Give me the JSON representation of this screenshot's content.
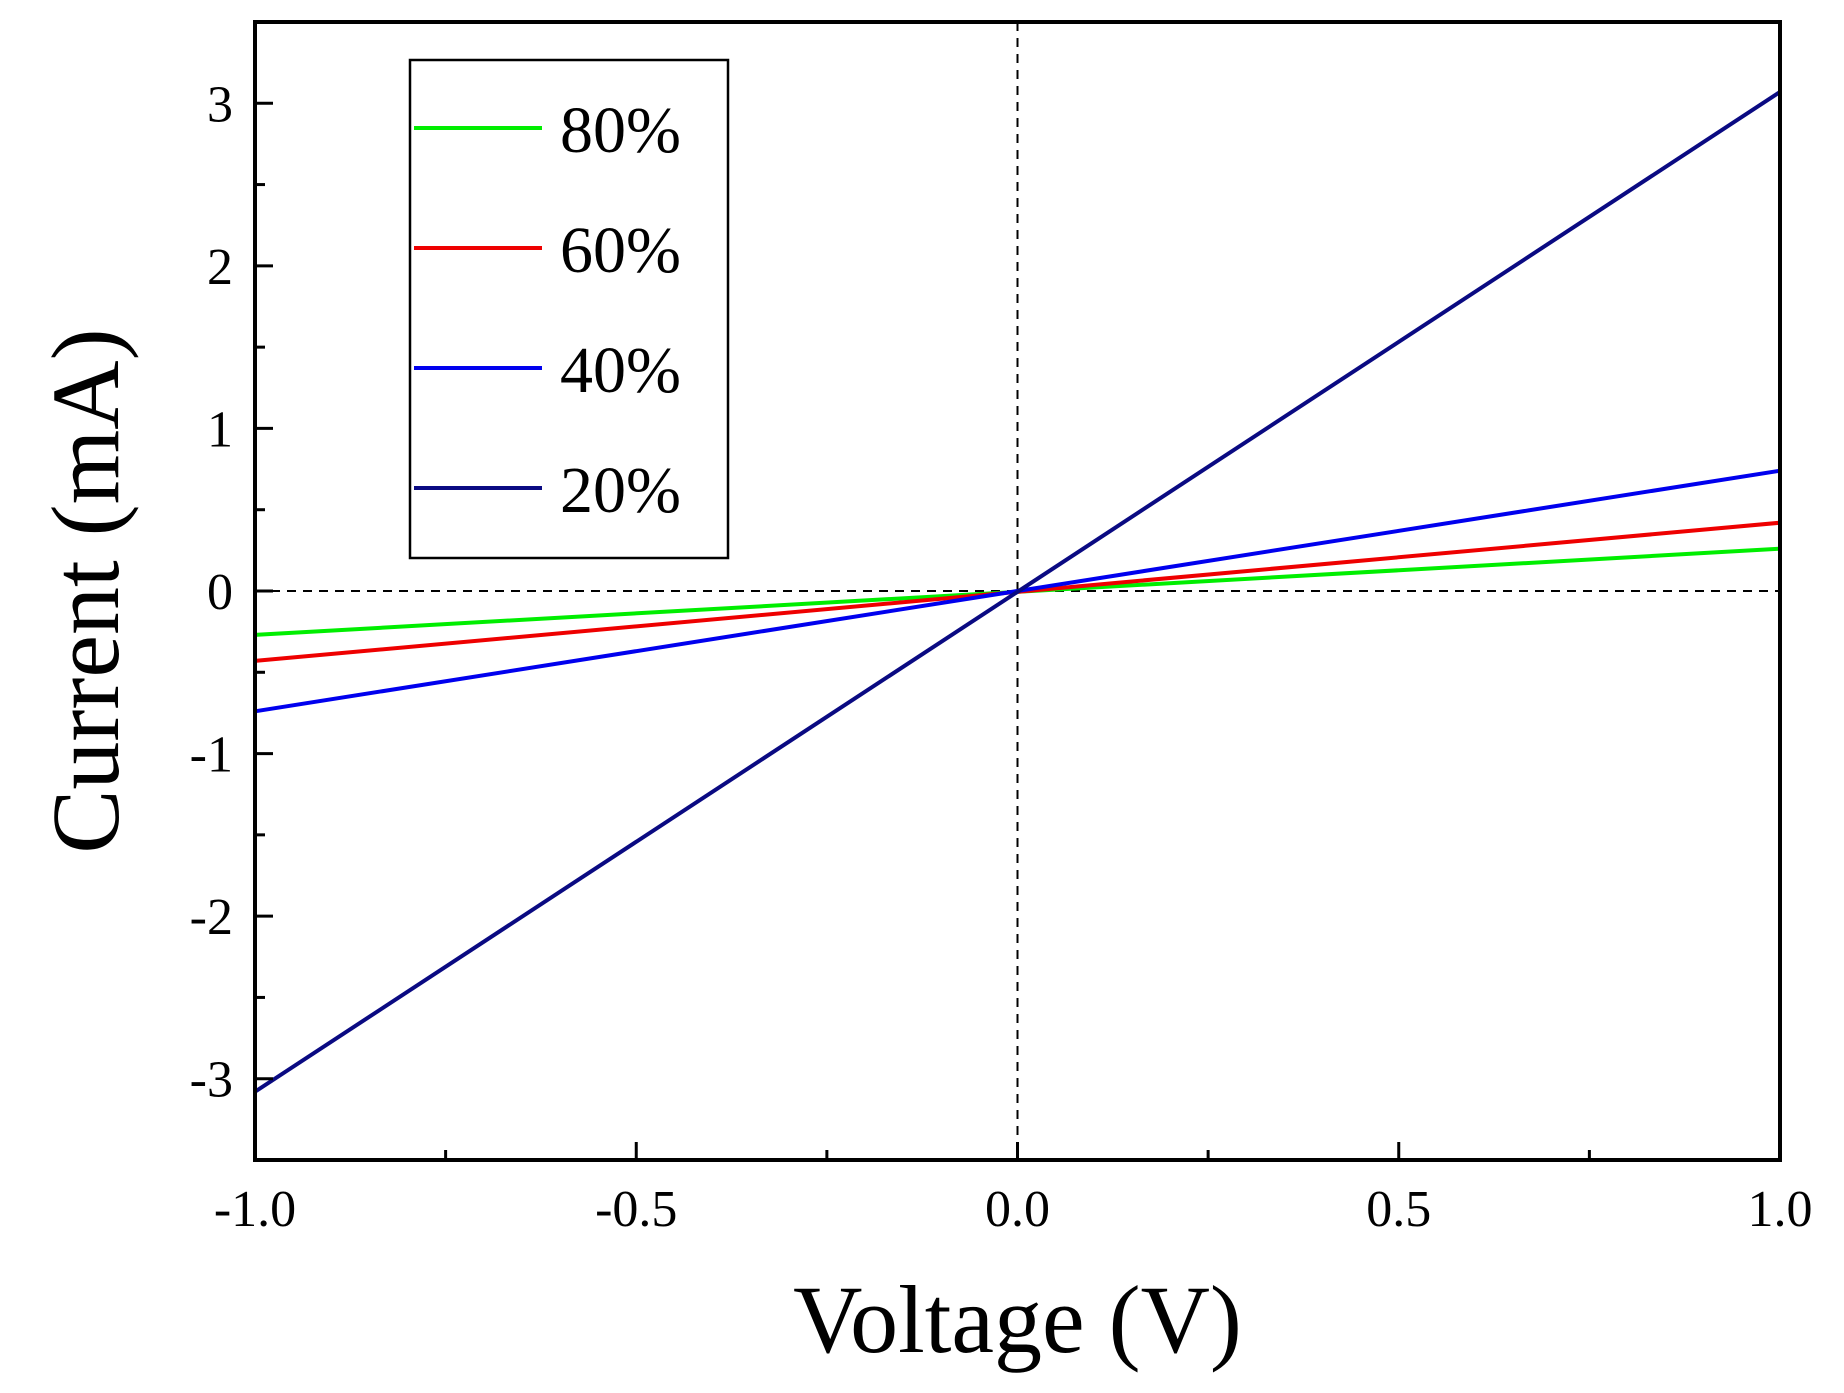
{
  "chart_data": {
    "type": "line",
    "title": "",
    "xlabel": "Voltage (V)",
    "ylabel": "Current (mA)",
    "xlim": [
      -1.0,
      1.0
    ],
    "ylim": [
      -3.5,
      3.5
    ],
    "x_ticks": [
      -1.0,
      -0.5,
      0.0,
      0.5,
      1.0
    ],
    "x_tick_labels": [
      "-1.0",
      "-0.5",
      "0.0",
      "0.5",
      "1.0"
    ],
    "y_ticks": [
      -3,
      -2,
      -1,
      0,
      1,
      2,
      3
    ],
    "y_tick_labels": [
      "-3",
      "-2",
      "-1",
      "0",
      "1",
      "2",
      "3"
    ],
    "grid": false,
    "zero_lines": true,
    "legend_position": "top-left",
    "x": [
      -1.0,
      1.0
    ],
    "series": [
      {
        "name": "80%",
        "color": "#00ee00",
        "values": [
          -0.27,
          0.26
        ]
      },
      {
        "name": "60%",
        "color": "#ee0000",
        "values": [
          -0.43,
          0.42
        ]
      },
      {
        "name": "40%",
        "color": "#0000ee",
        "values": [
          -0.74,
          0.74
        ]
      },
      {
        "name": "20%",
        "color": "#0a0a82",
        "values": [
          -3.08,
          3.07
        ]
      }
    ]
  }
}
